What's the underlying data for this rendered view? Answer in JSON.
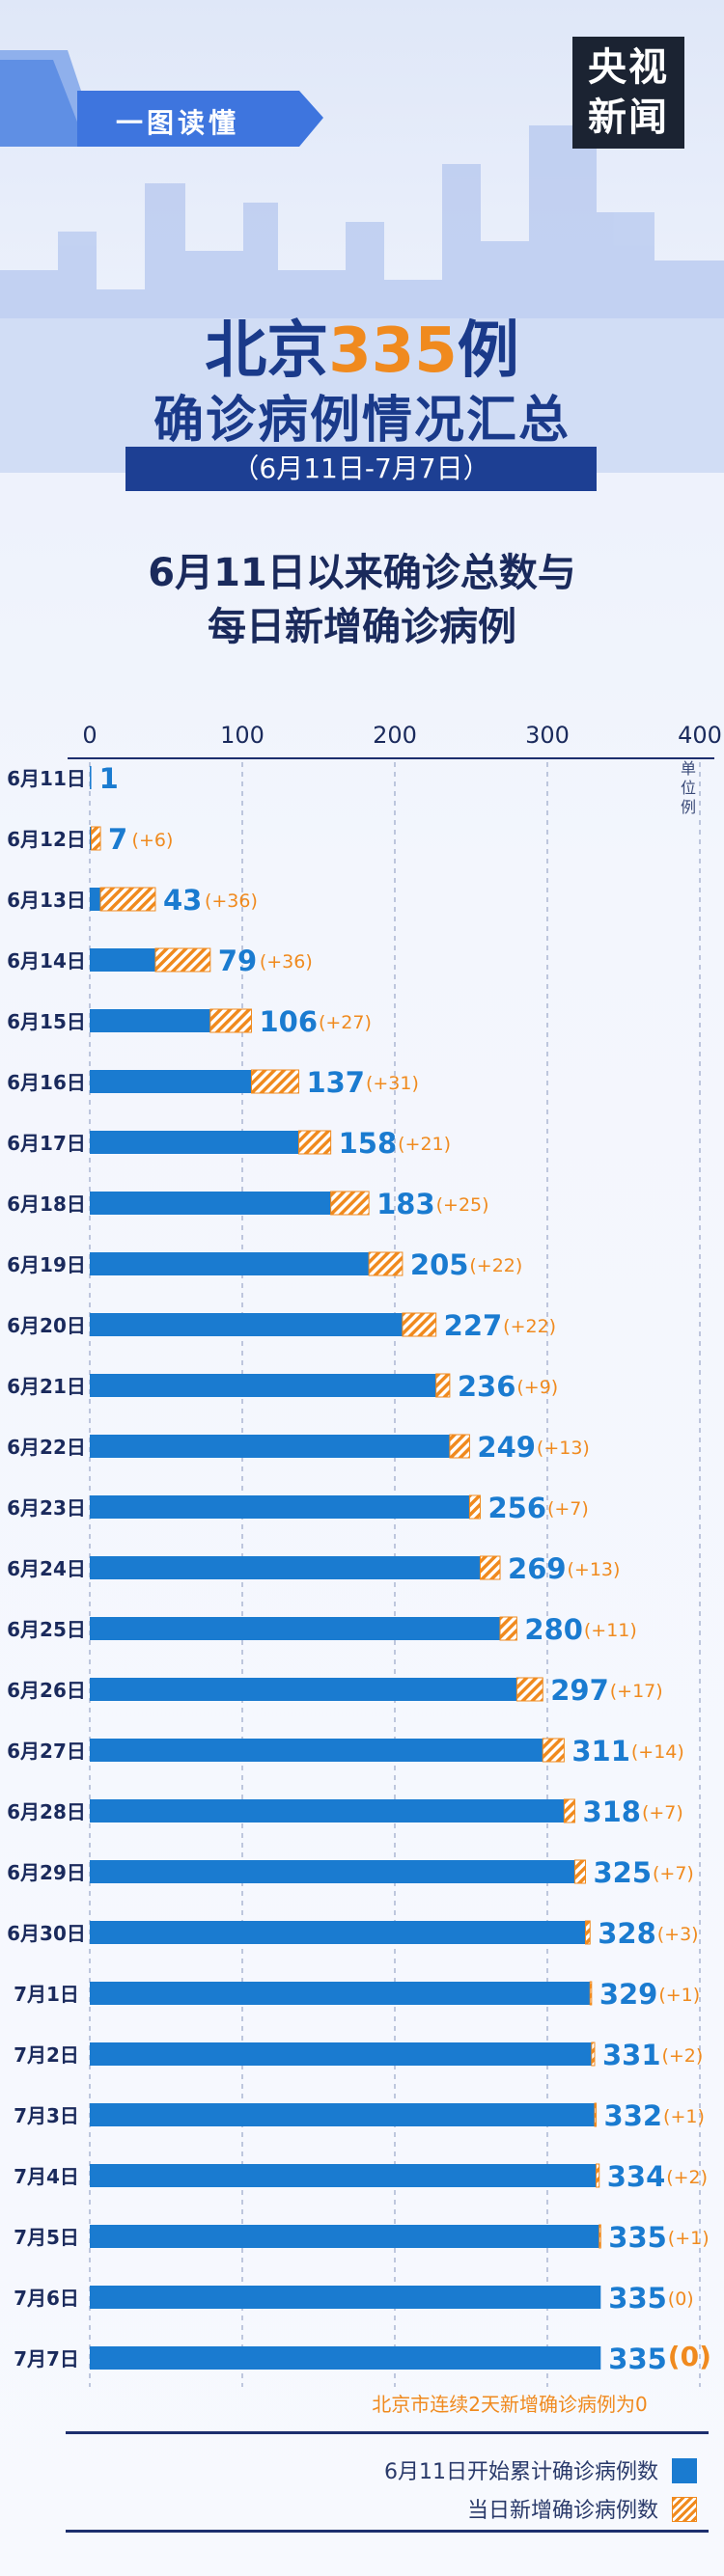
{
  "header": {
    "banner_text": "一图读懂",
    "logo_line1": "央视",
    "logo_line2": "新闻",
    "title_prefix": "北京",
    "title_number": "335",
    "title_suffix": "例",
    "title_line2": "确诊病例情况汇总",
    "date_range": "（6月11日-7月7日）",
    "subtitle_line1": "6月11日以来确诊总数与",
    "subtitle_line2": "每日新增确诊病例"
  },
  "colors": {
    "total_bar": "#1a7bd0",
    "daily_hatch": "#f08a1e",
    "title_blue": "#1a3a8a",
    "title_orange": "#f08a1e"
  },
  "chart_data": {
    "type": "bar",
    "orientation": "horizontal",
    "stacked": true,
    "xlim": [
      0,
      400
    ],
    "x_ticks": [
      "0",
      "100",
      "200",
      "300",
      "400"
    ],
    "unit_label": "单位例",
    "grid": true,
    "categories": [
      "6月11日",
      "6月12日",
      "6月13日",
      "6月14日",
      "6月15日",
      "6月16日",
      "6月17日",
      "6月18日",
      "6月19日",
      "6月20日",
      "6月21日",
      "6月22日",
      "6月23日",
      "6月24日",
      "6月25日",
      "6月26日",
      "6月27日",
      "6月28日",
      "6月29日",
      "6月30日",
      "7月1日",
      "7月2日",
      "7月3日",
      "7月4日",
      "7月5日",
      "7月6日",
      "7月7日"
    ],
    "totals": [
      1,
      7,
      43,
      79,
      106,
      137,
      158,
      183,
      205,
      227,
      236,
      249,
      256,
      269,
      280,
      297,
      311,
      318,
      325,
      328,
      329,
      331,
      332,
      334,
      335,
      335,
      335
    ],
    "daily_new": [
      null,
      6,
      36,
      36,
      27,
      31,
      21,
      25,
      22,
      22,
      9,
      13,
      7,
      13,
      11,
      17,
      14,
      7,
      7,
      3,
      1,
      2,
      1,
      2,
      1,
      0,
      0
    ],
    "series": [
      {
        "name": "6月11日开始累计确诊病例数",
        "color": "#1a7bd0"
      },
      {
        "name": "当日新增确诊病例数",
        "color": "#f08a1e"
      }
    ],
    "annotation": "北京市连续2天新增确诊病例为0",
    "legend_position": "bottom-right"
  }
}
